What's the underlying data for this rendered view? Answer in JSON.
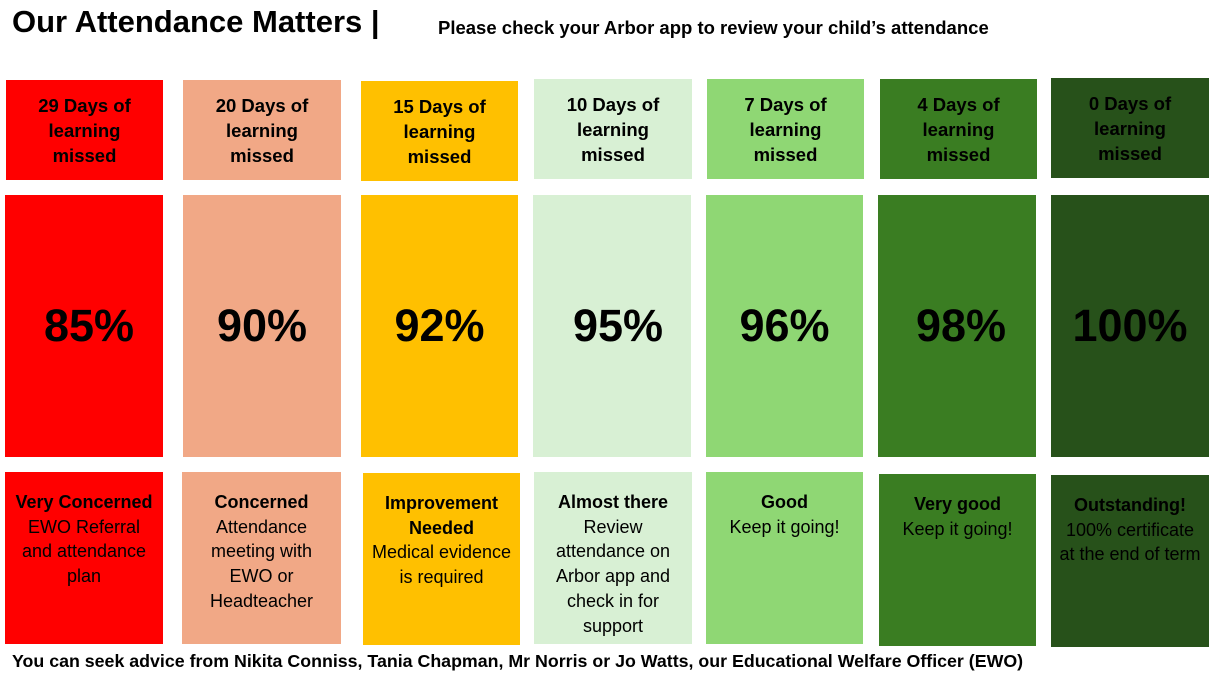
{
  "header": {
    "title": "Our Attendance Matters |",
    "subtitle": "Please check your Arbor app to review your child’s attendance"
  },
  "colors": {
    "red": "#ff0000",
    "salmon": "#f1a886",
    "amber": "#ffc000",
    "pale_green": "#d8f0d4",
    "light_green": "#8fd774",
    "green": "#3a7d22",
    "dark_green": "#27511a"
  },
  "columns": [
    {
      "days": "29 Days of learning missed",
      "percent": "85%",
      "status": "Very Concerned",
      "detail": "EWO Referral and attendance plan"
    },
    {
      "days": "20 Days of learning missed",
      "percent": "90%",
      "status": "Concerned",
      "detail": "Attendance meeting with EWO or Headteacher"
    },
    {
      "days": "15 Days of learning missed",
      "percent": "92%",
      "status": "Improvement Needed",
      "detail": "Medical evidence is required"
    },
    {
      "days": "10 Days of learning missed",
      "percent": "95%",
      "status": "Almost there",
      "detail": "Review attendance on Arbor app and check in for support"
    },
    {
      "days": "7 Days of learning missed",
      "percent": "96%",
      "status": "Good",
      "detail": "Keep it going!"
    },
    {
      "days": "4 Days of learning missed",
      "percent": "98%",
      "status": "Very good",
      "detail": "Keep it going!"
    },
    {
      "days": "0 Days of learning missed",
      "percent": "100%",
      "status": "Outstanding!",
      "detail": "100% certificate at the end of term"
    }
  ],
  "footer": {
    "text": "You can seek advice from Nikita Conniss, Tania Chapman, Mr Norris or Jo Watts, our Educational Welfare Officer (EWO)"
  }
}
